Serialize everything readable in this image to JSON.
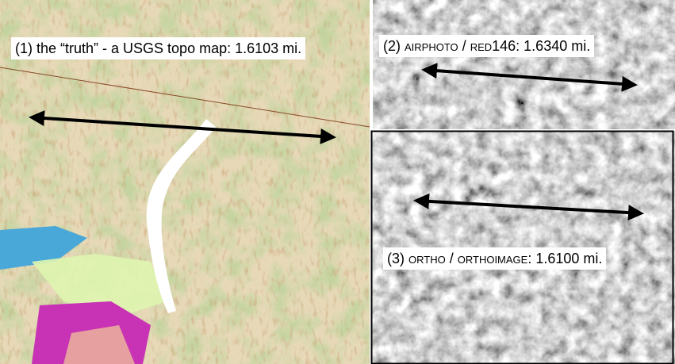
{
  "panels": [
    {
      "label": {
        "parts": [
          "(1) the “truth” - a USGS topo map: 1.6103 mi."
        ]
      }
    },
    {
      "label": {
        "parts": [
          "(2) ",
          "airphoto",
          " / ",
          "red",
          "146: 1.6340 mi."
        ]
      }
    },
    {
      "label": {
        "parts": [
          "(3) ",
          "ortho",
          " / ",
          "orthoimage",
          ": 1.6100 mi."
        ]
      }
    }
  ]
}
